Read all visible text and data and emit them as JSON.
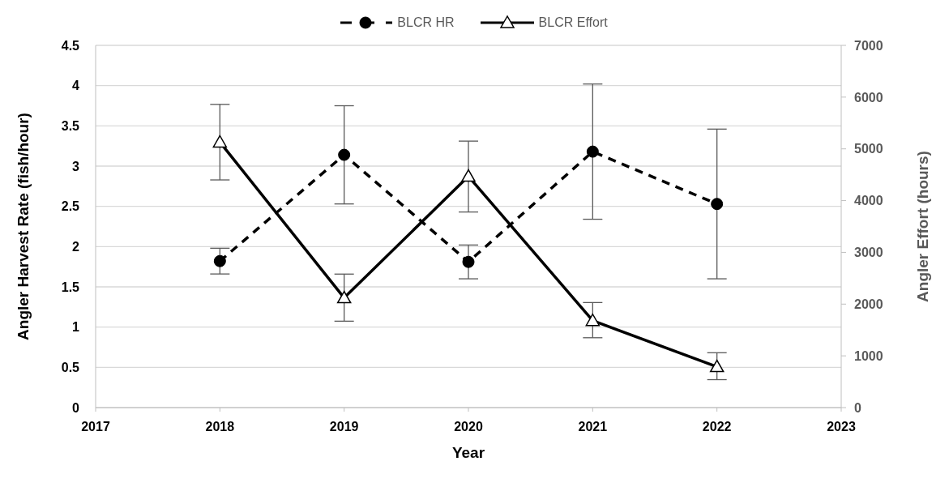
{
  "chart_data": {
    "type": "line",
    "xlabel": "Year",
    "ylabel": "Angler Harvest Rate (fish/hour)",
    "y2label": "Angler Effort (hours)",
    "x": [
      2018,
      2019,
      2020,
      2021,
      2022
    ],
    "series": [
      {
        "name": "BLCR HR",
        "color": "#000000",
        "values": [
          1.82,
          3.14,
          1.81,
          3.18,
          2.53
        ],
        "errors": [
          [
            1.66,
            1.98
          ],
          [
            2.53,
            3.75
          ],
          [
            1.6,
            2.02
          ],
          [
            2.34,
            4.02
          ],
          [
            1.6,
            3.46
          ]
        ],
        "marker": "circle",
        "line_style": "dashed"
      },
      {
        "name": "BLCR Effort",
        "color": "#000000",
        "values": [
          5130,
          2120,
          4470,
          1680,
          790
        ],
        "errors": [
          [
            4400,
            5860
          ],
          [
            1670,
            2580
          ],
          [
            3780,
            5150
          ],
          [
            1350,
            2030
          ],
          [
            540,
            1060
          ]
        ],
        "marker": "triangle",
        "line_style": "solid",
        "axis": "y2"
      }
    ],
    "xlim": [
      2017,
      2023
    ],
    "xticks": [
      2017,
      2018,
      2019,
      2020,
      2021,
      2022,
      2023
    ],
    "ylim": [
      0,
      4.5
    ],
    "yticks": [
      0,
      0.5,
      1,
      1.5,
      2,
      2.5,
      3,
      3.5,
      4,
      4.5
    ],
    "y2lim": [
      0,
      7000
    ],
    "y2ticks": [
      0,
      1000,
      2000,
      3000,
      4000,
      5000,
      6000,
      7000
    ],
    "grid": "y",
    "legend": "top"
  }
}
